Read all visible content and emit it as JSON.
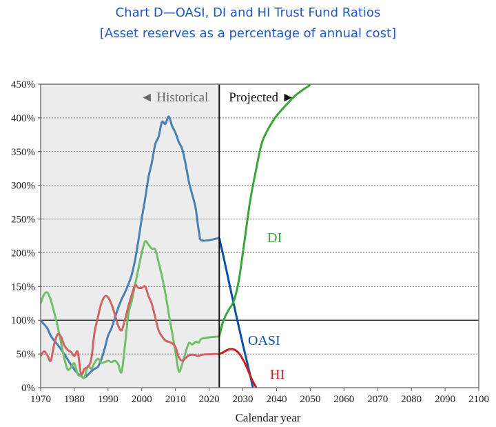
{
  "chart_data": {
    "type": "line",
    "title": "Chart D—OASI, DI and HI Trust Fund Ratios",
    "subtitle": "[Asset reserves as a percentage of annual cost]",
    "xlabel": "Calendar year",
    "ylabel": "",
    "xlim": [
      1970,
      2100
    ],
    "ylim": [
      0,
      450
    ],
    "x_ticks": [
      1970,
      1980,
      1990,
      2000,
      2010,
      2020,
      2030,
      2040,
      2050,
      2060,
      2070,
      2080,
      2090,
      2100
    ],
    "x_tick_labels": [
      "1970",
      "1980",
      "1990",
      "2000",
      "2010",
      "2020",
      "2030",
      "2040",
      "2050",
      "2060",
      "2070",
      "2080",
      "2090",
      "2100"
    ],
    "y_ticks": [
      0,
      50,
      100,
      150,
      200,
      250,
      300,
      350,
      400,
      450
    ],
    "y_tick_labels": [
      "0%",
      "50%",
      "100%",
      "150%",
      "200%",
      "250%",
      "300%",
      "350%",
      "400%",
      "450%"
    ],
    "grid": "horizontal-dotted",
    "reference_line": 100,
    "divider_year": 2023,
    "historical_label": "◄ Historical",
    "projected_label": "Projected ►",
    "historical_shading": "#ececec",
    "series": [
      {
        "name": "OASI",
        "label": "OASI",
        "historical_color": "#4a7fb5",
        "projected_color": "#0a4ea8",
        "historical": [
          [
            1970,
            100
          ],
          [
            1971,
            94
          ],
          [
            1972,
            88
          ],
          [
            1973,
            77
          ],
          [
            1974,
            70
          ],
          [
            1975,
            64
          ],
          [
            1976,
            57
          ],
          [
            1977,
            50
          ],
          [
            1978,
            42
          ],
          [
            1979,
            34
          ],
          [
            1980,
            27
          ],
          [
            1981,
            21
          ],
          [
            1982,
            17
          ],
          [
            1983,
            15
          ],
          [
            1984,
            19
          ],
          [
            1985,
            24
          ],
          [
            1986,
            28
          ],
          [
            1987,
            31
          ],
          [
            1988,
            42
          ],
          [
            1989,
            58
          ],
          [
            1990,
            77
          ],
          [
            1991,
            88
          ],
          [
            1992,
            103
          ],
          [
            1993,
            118
          ],
          [
            1994,
            131
          ],
          [
            1995,
            141
          ],
          [
            1996,
            153
          ],
          [
            1997,
            167
          ],
          [
            1998,
            189
          ],
          [
            1999,
            218
          ],
          [
            2000,
            251
          ],
          [
            2001,
            280
          ],
          [
            2002,
            312
          ],
          [
            2003,
            334
          ],
          [
            2004,
            361
          ],
          [
            2005,
            372
          ],
          [
            2006,
            394
          ],
          [
            2007,
            391
          ],
          [
            2008,
            402
          ],
          [
            2009,
            388
          ],
          [
            2010,
            378
          ],
          [
            2011,
            364
          ],
          [
            2012,
            354
          ],
          [
            2013,
            332
          ],
          [
            2014,
            305
          ],
          [
            2015,
            286
          ],
          [
            2016,
            266
          ],
          [
            2017,
            230
          ],
          [
            2018,
            218
          ]
        ],
        "projected": [
          [
            2023,
            222
          ],
          [
            2024,
            200
          ],
          [
            2025,
            177
          ],
          [
            2026,
            154
          ],
          [
            2027,
            131
          ],
          [
            2028,
            108
          ],
          [
            2029,
            86
          ],
          [
            2030,
            64
          ],
          [
            2031,
            43
          ],
          [
            2032,
            22
          ],
          [
            2033,
            0
          ]
        ]
      },
      {
        "name": "DI",
        "label": "DI",
        "historical_color": "#72bf6a",
        "projected_color": "#3aa63a",
        "historical": [
          [
            1970,
            125
          ],
          [
            1971,
            138
          ],
          [
            1972,
            141
          ],
          [
            1973,
            130
          ],
          [
            1974,
            112
          ],
          [
            1975,
            92
          ],
          [
            1976,
            68
          ],
          [
            1977,
            44
          ],
          [
            1978,
            27
          ],
          [
            1979,
            30
          ],
          [
            1980,
            36
          ],
          [
            1981,
            20
          ],
          [
            1982,
            17
          ],
          [
            1983,
            15
          ],
          [
            1984,
            32
          ],
          [
            1985,
            28
          ],
          [
            1986,
            37
          ],
          [
            1987,
            43
          ],
          [
            1988,
            37
          ],
          [
            1989,
            38
          ],
          [
            1990,
            40
          ],
          [
            1991,
            38
          ],
          [
            1992,
            40
          ],
          [
            1993,
            35
          ],
          [
            1994,
            23
          ],
          [
            1995,
            62
          ],
          [
            1996,
            108
          ],
          [
            1997,
            128
          ],
          [
            1998,
            152
          ],
          [
            1999,
            176
          ],
          [
            2000,
            200
          ],
          [
            2001,
            217
          ],
          [
            2002,
            212
          ],
          [
            2003,
            206
          ],
          [
            2004,
            205
          ],
          [
            2005,
            186
          ],
          [
            2006,
            165
          ],
          [
            2007,
            140
          ],
          [
            2008,
            110
          ],
          [
            2009,
            82
          ],
          [
            2010,
            53
          ],
          [
            2011,
            24
          ],
          [
            2012,
            35
          ],
          [
            2013,
            52
          ],
          [
            2014,
            66
          ],
          [
            2015,
            64
          ],
          [
            2016,
            68
          ],
          [
            2017,
            67
          ],
          [
            2018,
            73
          ]
        ],
        "projected": [
          [
            2023,
            76
          ],
          [
            2024,
            96
          ],
          [
            2025,
            108
          ],
          [
            2026,
            117
          ],
          [
            2027,
            125
          ],
          [
            2028,
            140
          ],
          [
            2029,
            165
          ],
          [
            2030,
            200
          ],
          [
            2031,
            236
          ],
          [
            2032,
            272
          ],
          [
            2033,
            300
          ],
          [
            2034,
            325
          ],
          [
            2035,
            350
          ],
          [
            2036,
            368
          ],
          [
            2038,
            388
          ],
          [
            2040,
            403
          ],
          [
            2043,
            420
          ],
          [
            2046,
            435
          ],
          [
            2050,
            449
          ]
        ]
      },
      {
        "name": "HI",
        "label": "HI",
        "historical_color": "#d06363",
        "projected_color": "#cc1f1f",
        "historical": [
          [
            1970,
            47
          ],
          [
            1971,
            54
          ],
          [
            1972,
            48
          ],
          [
            1973,
            40
          ],
          [
            1974,
            64
          ],
          [
            1975,
            79
          ],
          [
            1976,
            76
          ],
          [
            1977,
            63
          ],
          [
            1978,
            56
          ],
          [
            1979,
            53
          ],
          [
            1980,
            47
          ],
          [
            1981,
            53
          ],
          [
            1982,
            20
          ],
          [
            1983,
            28
          ],
          [
            1984,
            31
          ],
          [
            1985,
            42
          ],
          [
            1986,
            82
          ],
          [
            1987,
            105
          ],
          [
            1988,
            125
          ],
          [
            1989,
            135
          ],
          [
            1990,
            134
          ],
          [
            1991,
            124
          ],
          [
            1992,
            109
          ],
          [
            1993,
            92
          ],
          [
            1994,
            85
          ],
          [
            1995,
            100
          ],
          [
            1996,
            120
          ],
          [
            1997,
            137
          ],
          [
            1998,
            152
          ],
          [
            1999,
            148
          ],
          [
            2000,
            148
          ],
          [
            2001,
            150
          ],
          [
            2002,
            136
          ],
          [
            2003,
            124
          ],
          [
            2004,
            104
          ],
          [
            2005,
            85
          ],
          [
            2006,
            76
          ],
          [
            2007,
            70
          ],
          [
            2008,
            68
          ],
          [
            2009,
            66
          ],
          [
            2010,
            60
          ],
          [
            2011,
            45
          ],
          [
            2012,
            40
          ],
          [
            2013,
            44
          ],
          [
            2014,
            48
          ],
          [
            2015,
            49
          ],
          [
            2016,
            48
          ],
          [
            2017,
            47
          ],
          [
            2018,
            49
          ]
        ],
        "projected": [
          [
            2023,
            50
          ],
          [
            2024,
            52
          ],
          [
            2025,
            55
          ],
          [
            2026,
            57
          ],
          [
            2027,
            57
          ],
          [
            2028,
            55
          ],
          [
            2029,
            50
          ],
          [
            2030,
            42
          ],
          [
            2031,
            32
          ],
          [
            2032,
            20
          ],
          [
            2033,
            9
          ],
          [
            2034,
            0
          ]
        ]
      }
    ]
  }
}
